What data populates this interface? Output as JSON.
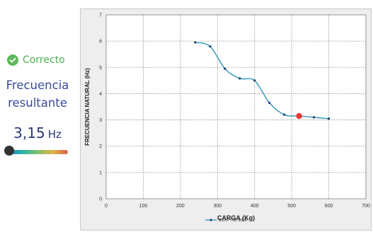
{
  "status": {
    "icon": "check-circle-icon",
    "text": "Correcto",
    "color": "#5cb85c"
  },
  "result": {
    "label": "Frecuencia resultante",
    "value": "3,15",
    "unit": "Hz",
    "gauge_level": 0.04
  },
  "chart_data": {
    "type": "line",
    "xlabel": "CARGA (Kg)",
    "ylabel": "FRECUENCIA NATURAL (Hz)",
    "xlim": [
      0,
      700
    ],
    "ylim": [
      0,
      7
    ],
    "x_ticks": [
      "0",
      "100",
      "200",
      "300",
      "400",
      "500",
      "600",
      "700"
    ],
    "y_ticks": [
      "0",
      "1",
      "2",
      "3",
      "4",
      "5",
      "6",
      "7"
    ],
    "grid": true,
    "legend_position": "bottom-center",
    "series": [
      {
        "name": "EIGHT TBF 600 A",
        "color": "#1f8fb8",
        "x": [
          240,
          280,
          320,
          360,
          400,
          440,
          480,
          520,
          560,
          600
        ],
        "y": [
          5.95,
          5.8,
          4.95,
          4.58,
          4.5,
          3.65,
          3.2,
          3.15,
          3.1,
          3.05
        ]
      }
    ],
    "highlight_point": {
      "x": 520,
      "y": 3.15,
      "color": "#e53935"
    }
  }
}
